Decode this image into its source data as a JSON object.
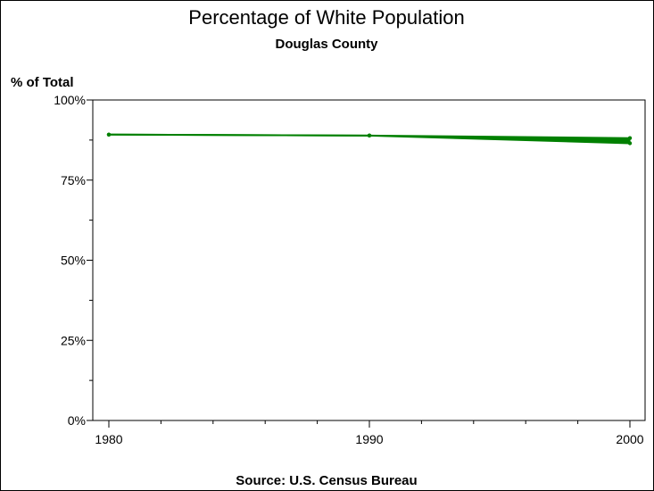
{
  "chart_data": {
    "type": "line",
    "title": "Percentage of White Population",
    "subtitle": "Douglas County",
    "ylabel": "% of Total",
    "xlabel": "",
    "source": "Source: U.S. Census Bureau",
    "x": [
      1980,
      1990,
      2000
    ],
    "xlim": [
      1980,
      2000
    ],
    "ylim": [
      0,
      100
    ],
    "x_ticks": [
      1980,
      1990,
      2000
    ],
    "x_tick_labels": [
      "1980",
      "1990",
      "2000"
    ],
    "y_ticks": [
      0,
      25,
      50,
      75,
      100
    ],
    "y_tick_labels": [
      "0%",
      "25%",
      "50%",
      "75%",
      "100%"
    ],
    "series": [
      {
        "values": [
          89.2,
          88.9,
          88.1
        ],
        "color": "#008000"
      },
      {
        "values": [
          89.2,
          88.9,
          86.5
        ],
        "color": "#008000"
      }
    ],
    "grid": false,
    "legend": "none"
  }
}
